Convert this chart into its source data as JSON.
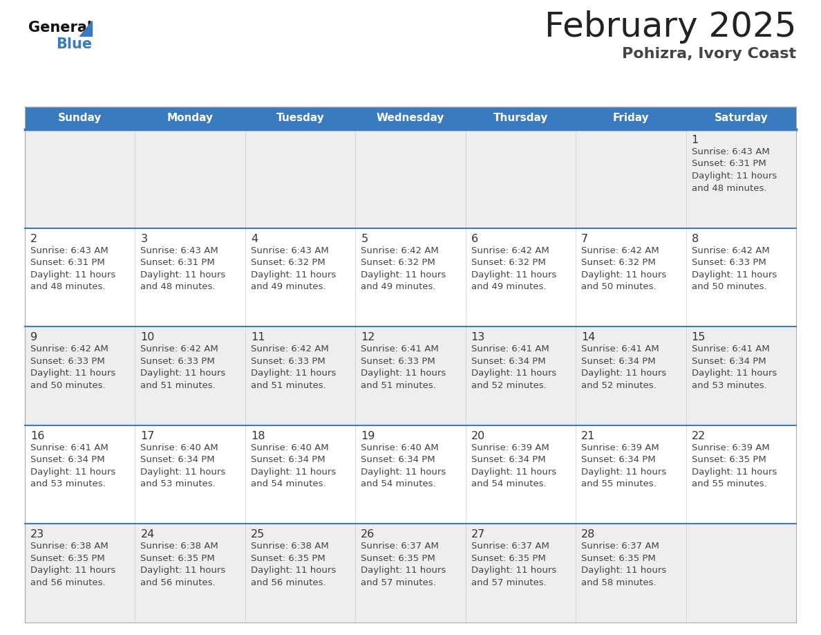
{
  "title": "February 2025",
  "subtitle": "Pohizra, Ivory Coast",
  "header_bg_color": "#3a7bbf",
  "header_text_color": "#ffffff",
  "row_colors": [
    "#eeeeee",
    "#ffffff",
    "#eeeeee",
    "#ffffff",
    "#eeeeee"
  ],
  "separator_color": "#3a7bbf",
  "grid_color": "#cccccc",
  "day_headers": [
    "Sunday",
    "Monday",
    "Tuesday",
    "Wednesday",
    "Thursday",
    "Friday",
    "Saturday"
  ],
  "days": [
    {
      "day": 1,
      "col": 6,
      "row": 0,
      "sunrise": "6:43 AM",
      "sunset": "6:31 PM",
      "daylight_hours": 11,
      "daylight_mins": 48
    },
    {
      "day": 2,
      "col": 0,
      "row": 1,
      "sunrise": "6:43 AM",
      "sunset": "6:31 PM",
      "daylight_hours": 11,
      "daylight_mins": 48
    },
    {
      "day": 3,
      "col": 1,
      "row": 1,
      "sunrise": "6:43 AM",
      "sunset": "6:31 PM",
      "daylight_hours": 11,
      "daylight_mins": 48
    },
    {
      "day": 4,
      "col": 2,
      "row": 1,
      "sunrise": "6:43 AM",
      "sunset": "6:32 PM",
      "daylight_hours": 11,
      "daylight_mins": 49
    },
    {
      "day": 5,
      "col": 3,
      "row": 1,
      "sunrise": "6:42 AM",
      "sunset": "6:32 PM",
      "daylight_hours": 11,
      "daylight_mins": 49
    },
    {
      "day": 6,
      "col": 4,
      "row": 1,
      "sunrise": "6:42 AM",
      "sunset": "6:32 PM",
      "daylight_hours": 11,
      "daylight_mins": 49
    },
    {
      "day": 7,
      "col": 5,
      "row": 1,
      "sunrise": "6:42 AM",
      "sunset": "6:32 PM",
      "daylight_hours": 11,
      "daylight_mins": 50
    },
    {
      "day": 8,
      "col": 6,
      "row": 1,
      "sunrise": "6:42 AM",
      "sunset": "6:33 PM",
      "daylight_hours": 11,
      "daylight_mins": 50
    },
    {
      "day": 9,
      "col": 0,
      "row": 2,
      "sunrise": "6:42 AM",
      "sunset": "6:33 PM",
      "daylight_hours": 11,
      "daylight_mins": 50
    },
    {
      "day": 10,
      "col": 1,
      "row": 2,
      "sunrise": "6:42 AM",
      "sunset": "6:33 PM",
      "daylight_hours": 11,
      "daylight_mins": 51
    },
    {
      "day": 11,
      "col": 2,
      "row": 2,
      "sunrise": "6:42 AM",
      "sunset": "6:33 PM",
      "daylight_hours": 11,
      "daylight_mins": 51
    },
    {
      "day": 12,
      "col": 3,
      "row": 2,
      "sunrise": "6:41 AM",
      "sunset": "6:33 PM",
      "daylight_hours": 11,
      "daylight_mins": 51
    },
    {
      "day": 13,
      "col": 4,
      "row": 2,
      "sunrise": "6:41 AM",
      "sunset": "6:34 PM",
      "daylight_hours": 11,
      "daylight_mins": 52
    },
    {
      "day": 14,
      "col": 5,
      "row": 2,
      "sunrise": "6:41 AM",
      "sunset": "6:34 PM",
      "daylight_hours": 11,
      "daylight_mins": 52
    },
    {
      "day": 15,
      "col": 6,
      "row": 2,
      "sunrise": "6:41 AM",
      "sunset": "6:34 PM",
      "daylight_hours": 11,
      "daylight_mins": 53
    },
    {
      "day": 16,
      "col": 0,
      "row": 3,
      "sunrise": "6:41 AM",
      "sunset": "6:34 PM",
      "daylight_hours": 11,
      "daylight_mins": 53
    },
    {
      "day": 17,
      "col": 1,
      "row": 3,
      "sunrise": "6:40 AM",
      "sunset": "6:34 PM",
      "daylight_hours": 11,
      "daylight_mins": 53
    },
    {
      "day": 18,
      "col": 2,
      "row": 3,
      "sunrise": "6:40 AM",
      "sunset": "6:34 PM",
      "daylight_hours": 11,
      "daylight_mins": 54
    },
    {
      "day": 19,
      "col": 3,
      "row": 3,
      "sunrise": "6:40 AM",
      "sunset": "6:34 PM",
      "daylight_hours": 11,
      "daylight_mins": 54
    },
    {
      "day": 20,
      "col": 4,
      "row": 3,
      "sunrise": "6:39 AM",
      "sunset": "6:34 PM",
      "daylight_hours": 11,
      "daylight_mins": 54
    },
    {
      "day": 21,
      "col": 5,
      "row": 3,
      "sunrise": "6:39 AM",
      "sunset": "6:34 PM",
      "daylight_hours": 11,
      "daylight_mins": 55
    },
    {
      "day": 22,
      "col": 6,
      "row": 3,
      "sunrise": "6:39 AM",
      "sunset": "6:35 PM",
      "daylight_hours": 11,
      "daylight_mins": 55
    },
    {
      "day": 23,
      "col": 0,
      "row": 4,
      "sunrise": "6:38 AM",
      "sunset": "6:35 PM",
      "daylight_hours": 11,
      "daylight_mins": 56
    },
    {
      "day": 24,
      "col": 1,
      "row": 4,
      "sunrise": "6:38 AM",
      "sunset": "6:35 PM",
      "daylight_hours": 11,
      "daylight_mins": 56
    },
    {
      "day": 25,
      "col": 2,
      "row": 4,
      "sunrise": "6:38 AM",
      "sunset": "6:35 PM",
      "daylight_hours": 11,
      "daylight_mins": 56
    },
    {
      "day": 26,
      "col": 3,
      "row": 4,
      "sunrise": "6:37 AM",
      "sunset": "6:35 PM",
      "daylight_hours": 11,
      "daylight_mins": 57
    },
    {
      "day": 27,
      "col": 4,
      "row": 4,
      "sunrise": "6:37 AM",
      "sunset": "6:35 PM",
      "daylight_hours": 11,
      "daylight_mins": 57
    },
    {
      "day": 28,
      "col": 5,
      "row": 4,
      "sunrise": "6:37 AM",
      "sunset": "6:35 PM",
      "daylight_hours": 11,
      "daylight_mins": 58
    }
  ],
  "num_rows": 5,
  "num_cols": 7,
  "bg_color": "#ffffff",
  "day_num_color": "#333333",
  "info_text_color": "#444444",
  "title_color": "#222222",
  "subtitle_color": "#444444"
}
